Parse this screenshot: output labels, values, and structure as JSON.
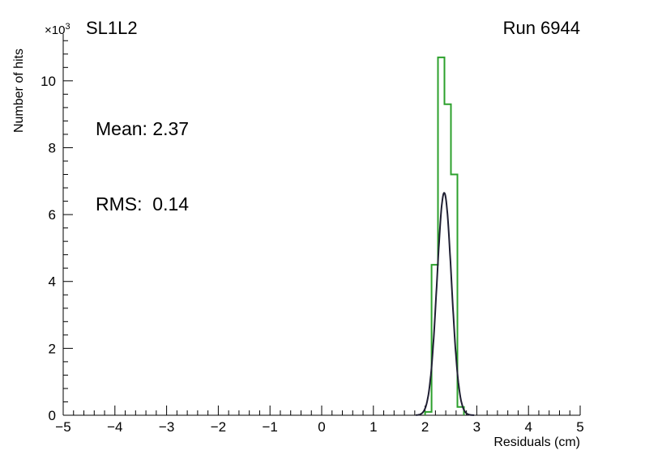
{
  "header": {
    "title": "SL1L2",
    "run": "Run 6944"
  },
  "stats": {
    "mean": "Mean: 2.37",
    "rms": "RMS:  0.14"
  },
  "axes": {
    "y_multiplier_base": "×10",
    "y_multiplier_exp": "3",
    "xlabel": "Residuals (cm)",
    "ylabel": "Number of hits"
  },
  "chart_data": {
    "type": "bar",
    "title": "SL1L2",
    "subtitle": "Run 6944",
    "annotations": [
      "Mean: 2.37",
      "RMS:  0.14"
    ],
    "xlabel": "Residuals (cm)",
    "ylabel": "Number of hits",
    "y_scale_factor": "×10³",
    "xlim": [
      -5,
      5
    ],
    "ylim": [
      0,
      11.4
    ],
    "grid": false,
    "legend_position": "none",
    "x_ticks": {
      "values": [
        -5,
        -4,
        -3,
        -2,
        -1,
        0,
        1,
        2,
        3,
        4,
        5
      ],
      "labels": [
        "−5",
        "−4",
        "−3",
        "−2",
        "−1",
        "0",
        "1",
        "2",
        "3",
        "4",
        "5"
      ]
    },
    "y_ticks": {
      "values": [
        0,
        2,
        4,
        6,
        8,
        10
      ],
      "labels": [
        "0",
        "2",
        "4",
        "6",
        "8",
        "10"
      ]
    },
    "x_minor_step": 0.2,
    "y_minor_step": 0.4,
    "histogram": {
      "name": "residuals-histogram",
      "color": "#2ca02c",
      "units": "×10³ hits",
      "bin_edges": [
        2.0,
        2.125,
        2.25,
        2.375,
        2.5,
        2.625,
        2.75
      ],
      "counts": [
        0.1,
        4.5,
        10.7,
        9.3,
        7.2,
        0.25
      ]
    },
    "fit": {
      "name": "gaussian-fit",
      "color": "#1f1f33",
      "mean": 2.37,
      "rms": 0.14,
      "amplitude": 6.65,
      "range": [
        1.82,
        2.95
      ]
    }
  }
}
